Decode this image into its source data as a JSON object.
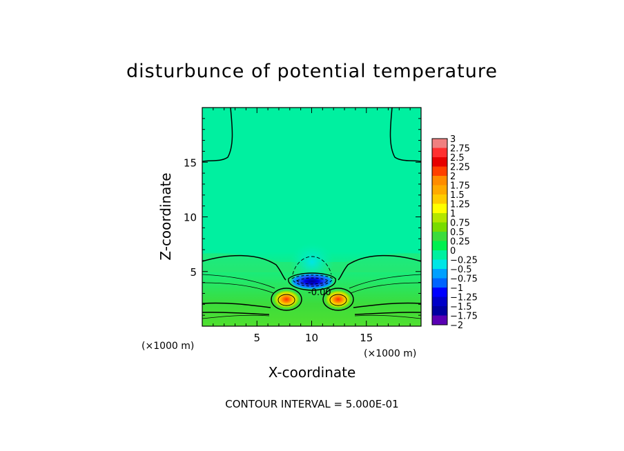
{
  "chart_data": {
    "type": "heatmap",
    "title": "disturbunce of potential temperature",
    "xlabel": "X-coordinate",
    "ylabel": "Z-coordinate",
    "x_unit_label": "(×1000 m)",
    "z_unit_label": "(×1000 m)",
    "xlim": [
      0,
      20
    ],
    "zlim": [
      0,
      20
    ],
    "x_ticks": [
      "5",
      "10",
      "15"
    ],
    "z_ticks": [
      "5",
      "10",
      "15"
    ],
    "x_tick_values": [
      5,
      10,
      15
    ],
    "z_tick_values": [
      5,
      10,
      15
    ],
    "contour_interval_text": "CONTOUR INTERVAL = 5.000E-01",
    "contour_labels": [
      {
        "text": "-0.00",
        "x": 9.6,
        "z": 2.9
      }
    ],
    "colorbar": {
      "labels": [
        "3",
        "2.75",
        "2.5",
        "2.25",
        "2",
        "1.75",
        "1.5",
        "1.25",
        "1",
        "0.75",
        "0.5",
        "0.25",
        "0",
        "-0.25",
        "-0.5",
        "-0.75",
        "-1",
        "-1.25",
        "-1.5",
        "-1.75",
        "-2"
      ],
      "colors": [
        "#f08080",
        "#ff3030",
        "#e60000",
        "#ff4000",
        "#ff8c00",
        "#ffaa00",
        "#ffcc00",
        "#ffff00",
        "#b4e600",
        "#78dc00",
        "#3cdc3c",
        "#00f050",
        "#00f0a0",
        "#00e6e6",
        "#00a0ff",
        "#0064ff",
        "#0000ff",
        "#0000c8",
        "#0000a0",
        "#5a00b4"
      ],
      "min": -2,
      "max": 3
    },
    "features": [
      {
        "kind": "warm anomaly",
        "x": 7.8,
        "z": 2.4,
        "peak": 2.0
      },
      {
        "kind": "warm anomaly",
        "x": 12.3,
        "z": 2.4,
        "peak": 2.0
      },
      {
        "kind": "cold anomaly",
        "x": 10.0,
        "z": 3.8,
        "min": -2.0
      },
      {
        "kind": "weak cool plume",
        "x": 10.0,
        "z": 5.5,
        "min": -0.25
      },
      {
        "kind": "warm layer",
        "z": 2.0,
        "value": 0.5
      }
    ]
  }
}
